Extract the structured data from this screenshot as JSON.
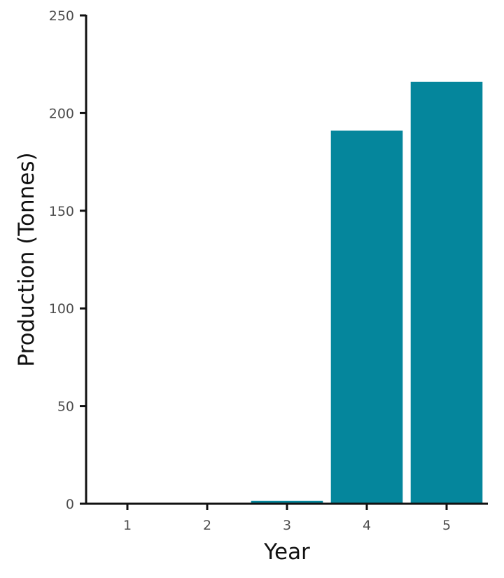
{
  "chart_data": {
    "type": "bar",
    "title": "",
    "xlabel": "Year",
    "ylabel": "Production (Tonnes)",
    "categories": [
      "1",
      "2",
      "3",
      "4",
      "5"
    ],
    "values": [
      0,
      0,
      1.5,
      191,
      216
    ],
    "ylim": [
      0,
      250
    ],
    "yticks": [
      "0",
      "50",
      "100",
      "150",
      "200",
      "250"
    ],
    "grid": false,
    "legend": "none",
    "bar_color": "#05869C",
    "axis_color": "#111111"
  }
}
